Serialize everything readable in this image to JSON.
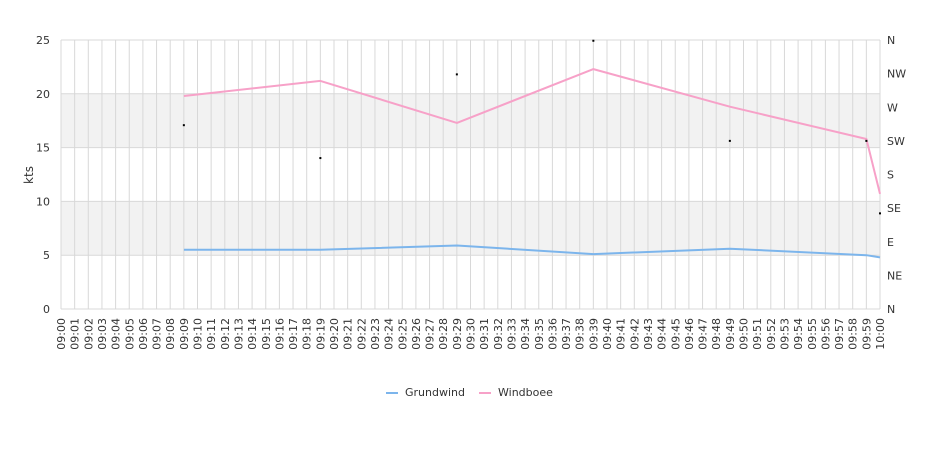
{
  "chart_data": {
    "type": "line",
    "title": "",
    "ylabel": "kts",
    "ylim": [
      0,
      25
    ],
    "y_ticks": [
      "0",
      "5",
      "10",
      "15",
      "20",
      "25"
    ],
    "y2_ticks": [
      "N",
      "NE",
      "E",
      "SE",
      "S",
      "SW",
      "W",
      "NW",
      "N"
    ],
    "y2lim": [
      0,
      360
    ],
    "x_ticks": [
      "09:00",
      "09:01",
      "09:02",
      "09:03",
      "09:04",
      "09:05",
      "09:06",
      "09:07",
      "09:08",
      "09:09",
      "09:10",
      "09:11",
      "09:12",
      "09:13",
      "09:14",
      "09:15",
      "09:16",
      "09:17",
      "09:18",
      "09:19",
      "09:20",
      "09:21",
      "09:22",
      "09:23",
      "09:24",
      "09:25",
      "09:26",
      "09:27",
      "09:28",
      "09:29",
      "09:30",
      "09:31",
      "09:32",
      "09:33",
      "09:34",
      "09:35",
      "09:36",
      "09:37",
      "09:38",
      "09:39",
      "09:40",
      "09:41",
      "09:42",
      "09:43",
      "09:44",
      "09:45",
      "09:46",
      "09:47",
      "09:48",
      "09:49",
      "09:50",
      "09:51",
      "09:52",
      "09:53",
      "09:54",
      "09:55",
      "09:56",
      "09:57",
      "09:58",
      "09:59",
      "10:00"
    ],
    "bands": [
      [
        5,
        10
      ],
      [
        15,
        20
      ]
    ],
    "grid": true,
    "legend_position": "bottom",
    "series": [
      {
        "name": "Grundwind",
        "color": "#7cb5ec",
        "x": [
          "09:09",
          "09:19",
          "09:29",
          "09:39",
          "09:49",
          "09:59",
          "10:00"
        ],
        "values": [
          5.5,
          5.5,
          5.9,
          5.1,
          5.6,
          5.0,
          4.8
        ]
      },
      {
        "name": "Windboee",
        "color": "#f7a1c8",
        "x": [
          "09:09",
          "09:19",
          "09:29",
          "09:39",
          "09:49",
          "09:59",
          "10:00"
        ],
        "values": [
          19.8,
          21.2,
          17.3,
          22.3,
          18.8,
          15.8,
          10.7
        ]
      }
    ],
    "direction": {
      "unit": "degrees",
      "x": [
        "09:09",
        "09:19",
        "09:29",
        "09:39",
        "09:49",
        "09:59",
        "10:00"
      ],
      "values": [
        246,
        202,
        314,
        359,
        225,
        225,
        128
      ]
    }
  }
}
